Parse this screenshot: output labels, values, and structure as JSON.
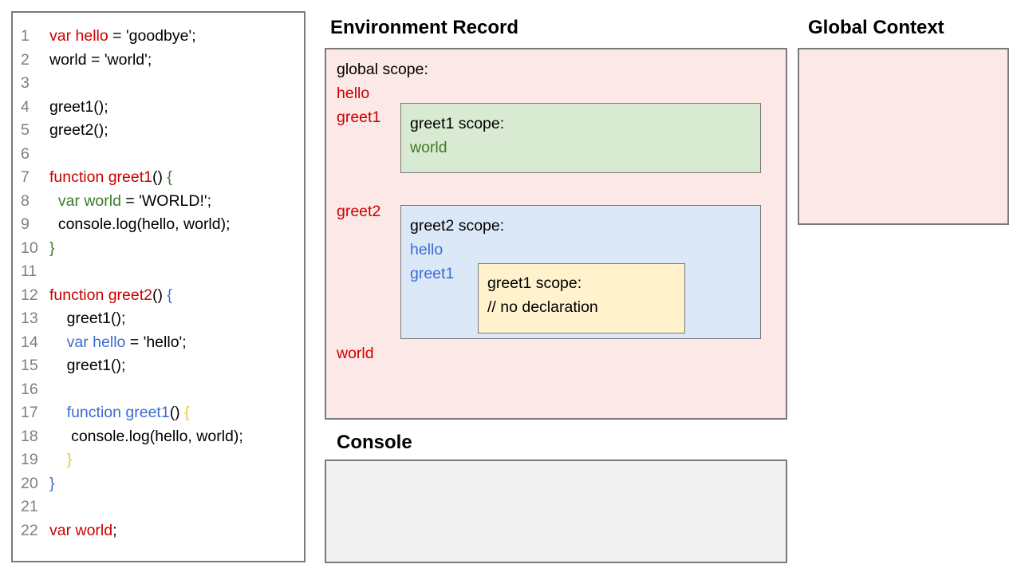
{
  "colors": {
    "red": "#cc0000",
    "green": "#3d7c2b",
    "blue": "#3c6cd1",
    "gold": "#f1c232",
    "plain": "#000000",
    "line_number": "#7f7f7f",
    "border_gray": "#7a7a7a",
    "panel_bg": "#ffffff",
    "pink_bg": "#fce8e6",
    "green_bg": "#d9ead3",
    "blue_bg": "#dbe8f8",
    "yellow_bg": "#fff2cc",
    "console_bg": "#f1f1f1"
  },
  "code_panel": {
    "lines": [
      {
        "num": "1",
        "tokens": [
          {
            "t": "var hello",
            "c": "red"
          },
          {
            "t": " = 'goodbye';",
            "c": "plain"
          }
        ]
      },
      {
        "num": "2",
        "tokens": [
          {
            "t": "world = 'world';",
            "c": "plain"
          }
        ]
      },
      {
        "num": "3",
        "tokens": []
      },
      {
        "num": "4",
        "tokens": [
          {
            "t": "greet1();",
            "c": "plain"
          }
        ]
      },
      {
        "num": "5",
        "tokens": [
          {
            "t": "greet2();",
            "c": "plain"
          }
        ]
      },
      {
        "num": "6",
        "tokens": []
      },
      {
        "num": "7",
        "tokens": [
          {
            "t": "function greet1",
            "c": "red"
          },
          {
            "t": "() ",
            "c": "plain"
          },
          {
            "t": "{",
            "c": "green"
          }
        ]
      },
      {
        "num": "8",
        "tokens": [
          {
            "t": "  ",
            "c": "plain"
          },
          {
            "t": "var world",
            "c": "green"
          },
          {
            "t": " = 'WORLD!';",
            "c": "plain"
          }
        ]
      },
      {
        "num": "9",
        "tokens": [
          {
            "t": "  console.log(hello, world);",
            "c": "plain"
          }
        ]
      },
      {
        "num": "10",
        "tokens": [
          {
            "t": "}",
            "c": "green"
          }
        ]
      },
      {
        "num": "11",
        "tokens": []
      },
      {
        "num": "12",
        "tokens": [
          {
            "t": "function greet2",
            "c": "red"
          },
          {
            "t": "() ",
            "c": "plain"
          },
          {
            "t": "{",
            "c": "blue"
          }
        ]
      },
      {
        "num": "13",
        "tokens": [
          {
            "t": "    greet1();",
            "c": "plain"
          }
        ]
      },
      {
        "num": "14",
        "tokens": [
          {
            "t": "    ",
            "c": "plain"
          },
          {
            "t": "var hello",
            "c": "blue"
          },
          {
            "t": " = 'hello';",
            "c": "plain"
          }
        ]
      },
      {
        "num": "15",
        "tokens": [
          {
            "t": "    greet1();",
            "c": "plain"
          }
        ]
      },
      {
        "num": "16",
        "tokens": []
      },
      {
        "num": "17",
        "tokens": [
          {
            "t": "    ",
            "c": "plain"
          },
          {
            "t": "function greet1",
            "c": "blue"
          },
          {
            "t": "() ",
            "c": "plain"
          },
          {
            "t": "{",
            "c": "gold"
          }
        ]
      },
      {
        "num": "18",
        "tokens": [
          {
            "t": "     console.log(hello, world);",
            "c": "plain"
          }
        ]
      },
      {
        "num": "19",
        "tokens": [
          {
            "t": "    ",
            "c": "plain"
          },
          {
            "t": "}",
            "c": "gold"
          }
        ]
      },
      {
        "num": "20",
        "tokens": [
          {
            "t": "}",
            "c": "blue"
          }
        ]
      },
      {
        "num": "21",
        "tokens": []
      },
      {
        "num": "22",
        "tokens": [
          {
            "t": "var world",
            "c": "red"
          },
          {
            "t": ";",
            "c": "plain"
          }
        ]
      }
    ]
  },
  "environment_record": {
    "title": "Environment Record",
    "global_scope": {
      "label": "global scope:",
      "entries": [
        "hello",
        "greet1",
        "greet2",
        "world"
      ],
      "greet1_scope": {
        "label": "greet1 scope:",
        "vars": [
          "world"
        ]
      },
      "greet2_scope": {
        "label": "greet2 scope:",
        "vars": [
          "hello",
          "greet1"
        ],
        "inner_greet1_scope": {
          "label": "greet1 scope:",
          "comment": "// no declaration"
        }
      }
    }
  },
  "global_context": {
    "title": "Global Context"
  },
  "console": {
    "title": "Console"
  }
}
